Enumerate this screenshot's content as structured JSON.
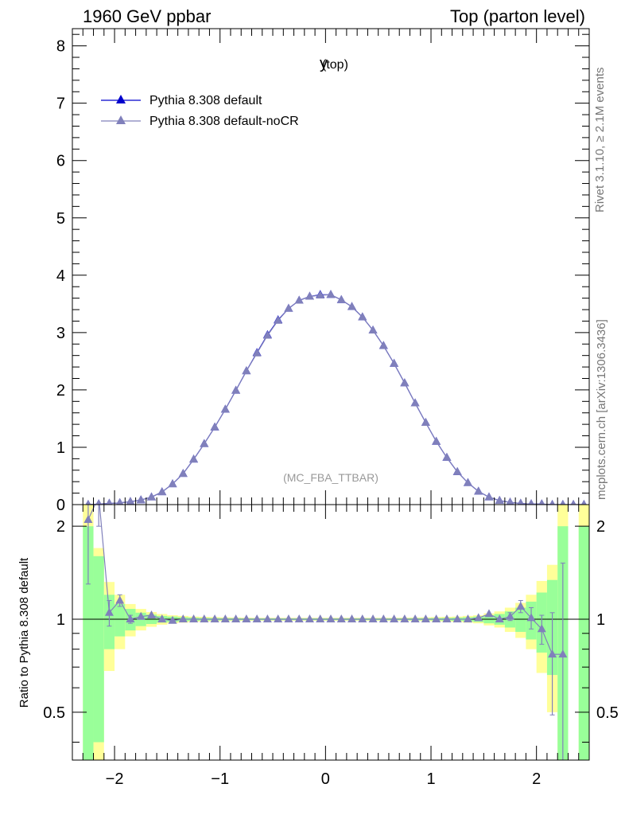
{
  "header": {
    "left": "1960 GeV ppbar",
    "right": "Top (parton level)"
  },
  "side_labels": {
    "rivet": "Rivet 3.1.10, ≥ 2.1M events",
    "mcplots": "mcplots.cern.ch [arXiv:1306.3436]"
  },
  "chart_data": [
    {
      "type": "line",
      "title": "y",
      "title_sub": "(top)",
      "annotation": "(MC_FBA_TTBAR)",
      "xlim": [
        -2.4,
        2.5
      ],
      "ylim": [
        0,
        8.3
      ],
      "y_ticks": [
        "0",
        "1",
        "2",
        "3",
        "4",
        "5",
        "6",
        "7",
        "8"
      ],
      "legend_position": "top-left",
      "x": [
        -2.25,
        -2.15,
        -2.05,
        -1.95,
        -1.85,
        -1.75,
        -1.65,
        -1.55,
        -1.45,
        -1.35,
        -1.25,
        -1.15,
        -1.05,
        -0.95,
        -0.85,
        -0.75,
        -0.65,
        -0.55,
        -0.45,
        -0.35,
        -0.25,
        -0.15,
        -0.05,
        0.05,
        0.15,
        0.25,
        0.35,
        0.45,
        0.55,
        0.65,
        0.75,
        0.85,
        0.95,
        1.05,
        1.15,
        1.25,
        1.35,
        1.45,
        1.55,
        1.65,
        1.75,
        1.85,
        1.95,
        2.05,
        2.15,
        2.25,
        2.35,
        2.45
      ],
      "series": [
        {
          "name": "Pythia 8.308 default",
          "color": "#0000cc",
          "values": [
            0.0,
            0.01,
            0.02,
            0.03,
            0.05,
            0.08,
            0.13,
            0.22,
            0.36,
            0.54,
            0.79,
            1.06,
            1.35,
            1.66,
            1.99,
            2.33,
            2.65,
            2.96,
            3.22,
            3.42,
            3.56,
            3.63,
            3.66,
            3.66,
            3.57,
            3.45,
            3.27,
            3.04,
            2.77,
            2.46,
            2.12,
            1.77,
            1.43,
            1.1,
            0.82,
            0.57,
            0.38,
            0.23,
            0.13,
            0.07,
            0.04,
            0.02,
            0.01,
            0.01,
            0.0,
            0.0,
            0.0,
            0.0
          ]
        },
        {
          "name": "Pythia 8.308 default-noCR",
          "color": "#8080bb",
          "values": [
            0.0,
            0.01,
            0.02,
            0.03,
            0.05,
            0.08,
            0.13,
            0.22,
            0.36,
            0.54,
            0.79,
            1.06,
            1.35,
            1.66,
            1.99,
            2.33,
            2.64,
            2.95,
            3.21,
            3.42,
            3.56,
            3.63,
            3.65,
            3.66,
            3.57,
            3.45,
            3.27,
            3.04,
            2.77,
            2.46,
            2.12,
            1.77,
            1.43,
            1.1,
            0.82,
            0.57,
            0.38,
            0.23,
            0.13,
            0.07,
            0.04,
            0.02,
            0.01,
            0.01,
            0.0,
            0.0,
            0.0,
            0.0
          ]
        }
      ]
    },
    {
      "type": "line",
      "ylabel": "Ratio to Pythia 8.308 default",
      "xlim": [
        -2.4,
        2.5
      ],
      "ylim": [
        0.35,
        2.35
      ],
      "y_scale": "log",
      "x_ticks": [
        "−2",
        "−1",
        "0",
        "1",
        "2"
      ],
      "y_ticks": [
        "0.5",
        "1",
        "2"
      ],
      "reference_line": 1,
      "bands": {
        "yellow_color": "#ffff99",
        "green_color": "#99ff99",
        "x": [
          -2.25,
          -2.15,
          -2.05,
          -1.95,
          -1.85,
          -1.75,
          -1.65,
          -1.55,
          -1.45,
          -1.35,
          -1.25,
          -1.15,
          -1.05,
          -0.95,
          -0.85,
          -0.75,
          -0.65,
          -0.55,
          -0.45,
          -0.35,
          -0.25,
          -0.15,
          -0.05,
          0.05,
          0.15,
          0.25,
          0.35,
          0.45,
          0.55,
          0.65,
          0.75,
          0.85,
          0.95,
          1.05,
          1.15,
          1.25,
          1.35,
          1.45,
          1.55,
          1.65,
          1.75,
          1.85,
          1.95,
          2.05,
          2.15,
          2.25,
          2.35,
          2.45
        ],
        "yellow_half": [
          1.5,
          0.7,
          0.32,
          0.2,
          0.12,
          0.08,
          0.055,
          0.04,
          0.03,
          0.025,
          0.02,
          0.018,
          0.016,
          0.014,
          0.013,
          0.012,
          0.011,
          0.011,
          0.011,
          0.011,
          0.011,
          0.011,
          0.011,
          0.011,
          0.011,
          0.011,
          0.011,
          0.011,
          0.011,
          0.011,
          0.012,
          0.013,
          0.014,
          0.016,
          0.018,
          0.02,
          0.025,
          0.03,
          0.045,
          0.06,
          0.09,
          0.13,
          0.2,
          0.33,
          0.5,
          1.5,
          0.0,
          1.5
        ],
        "green_half": [
          1.0,
          0.6,
          0.2,
          0.12,
          0.08,
          0.05,
          0.035,
          0.025,
          0.02,
          0.015,
          0.012,
          0.01,
          0.009,
          0.008,
          0.008,
          0.007,
          0.007,
          0.007,
          0.007,
          0.007,
          0.007,
          0.007,
          0.007,
          0.007,
          0.007,
          0.007,
          0.007,
          0.007,
          0.007,
          0.007,
          0.007,
          0.008,
          0.008,
          0.009,
          0.01,
          0.012,
          0.015,
          0.02,
          0.03,
          0.04,
          0.06,
          0.09,
          0.14,
          0.22,
          0.34,
          1.0,
          0.0,
          1.0
        ]
      },
      "series": [
        {
          "name": "Pythia 8.308 default-noCR",
          "color": "#8080bb",
          "values": [
            2.1,
            2.5,
            1.05,
            1.15,
            1.0,
            1.02,
            1.03,
            1.0,
            0.99,
            1.0,
            1.0,
            1.0,
            1.0,
            1.0,
            1.0,
            1.0,
            1.0,
            1.0,
            1.0,
            1.0,
            1.0,
            1.0,
            1.0,
            1.0,
            1.0,
            1.0,
            1.0,
            1.0,
            1.0,
            1.0,
            1.0,
            1.0,
            1.0,
            1.0,
            1.0,
            1.0,
            1.0,
            1.01,
            1.04,
            1.0,
            1.02,
            1.1,
            1.01,
            0.93,
            0.77,
            0.77,
            null,
            null
          ],
          "errors": [
            0.8,
            0.5,
            0.1,
            0.05,
            0.03,
            0.02,
            0.015,
            0.01,
            0.01,
            0.008,
            0.006,
            0.005,
            0.005,
            0.004,
            0.004,
            0.004,
            0.004,
            0.004,
            0.004,
            0.004,
            0.004,
            0.004,
            0.004,
            0.004,
            0.004,
            0.004,
            0.004,
            0.004,
            0.004,
            0.004,
            0.004,
            0.004,
            0.004,
            0.005,
            0.005,
            0.006,
            0.008,
            0.01,
            0.015,
            0.02,
            0.03,
            0.05,
            0.08,
            0.1,
            0.28,
            0.75,
            0,
            0
          ]
        }
      ]
    }
  ]
}
